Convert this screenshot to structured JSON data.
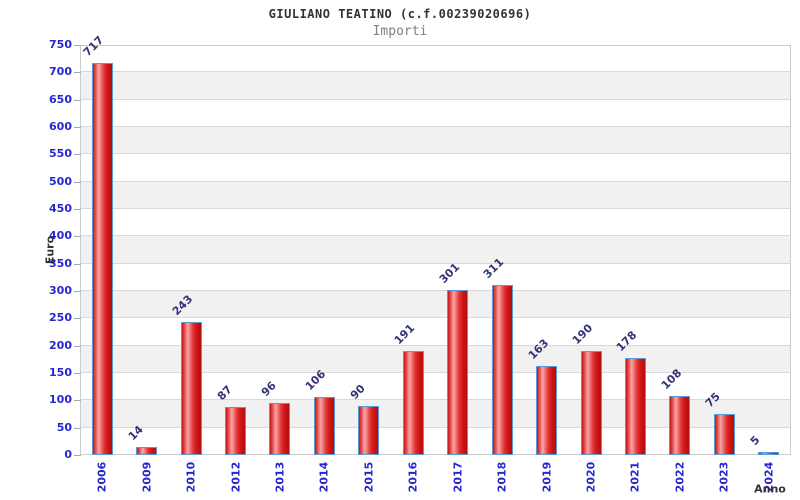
{
  "chart_data": {
    "type": "bar",
    "title": "GIULIANO TEATINO (c.f.00239020696)",
    "subtitle": "Importi",
    "xlabel": "Anno",
    "ylabel": "Euro",
    "categories": [
      "2006",
      "2009",
      "2010",
      "2012",
      "2013",
      "2014",
      "2015",
      "2016",
      "2017",
      "2018",
      "2019",
      "2020",
      "2021",
      "2022",
      "2023",
      "2024"
    ],
    "values": [
      717,
      14,
      243,
      87,
      96,
      106,
      90,
      191,
      301,
      311,
      163,
      190,
      178,
      108,
      75,
      5
    ],
    "ylim": [
      0,
      750
    ],
    "ytick_step": 50,
    "grid": true,
    "legend": "none",
    "band_pattern": "alternating white/gray every 50 units starting white at 0",
    "colors": {
      "bar_border": "#5b9bd5",
      "bar_gradient_dark": "#b30e0e",
      "bar_gradient_main": "#e02020",
      "bar_gradient_highlight": "#f7a6a6",
      "axis_tick_label": "#2727cf",
      "value_label": "#333377",
      "band_gray": "#f1f1f1",
      "gridline": "#d9d9d9",
      "title_color": "#333333",
      "subtitle_color": "#808080"
    }
  }
}
